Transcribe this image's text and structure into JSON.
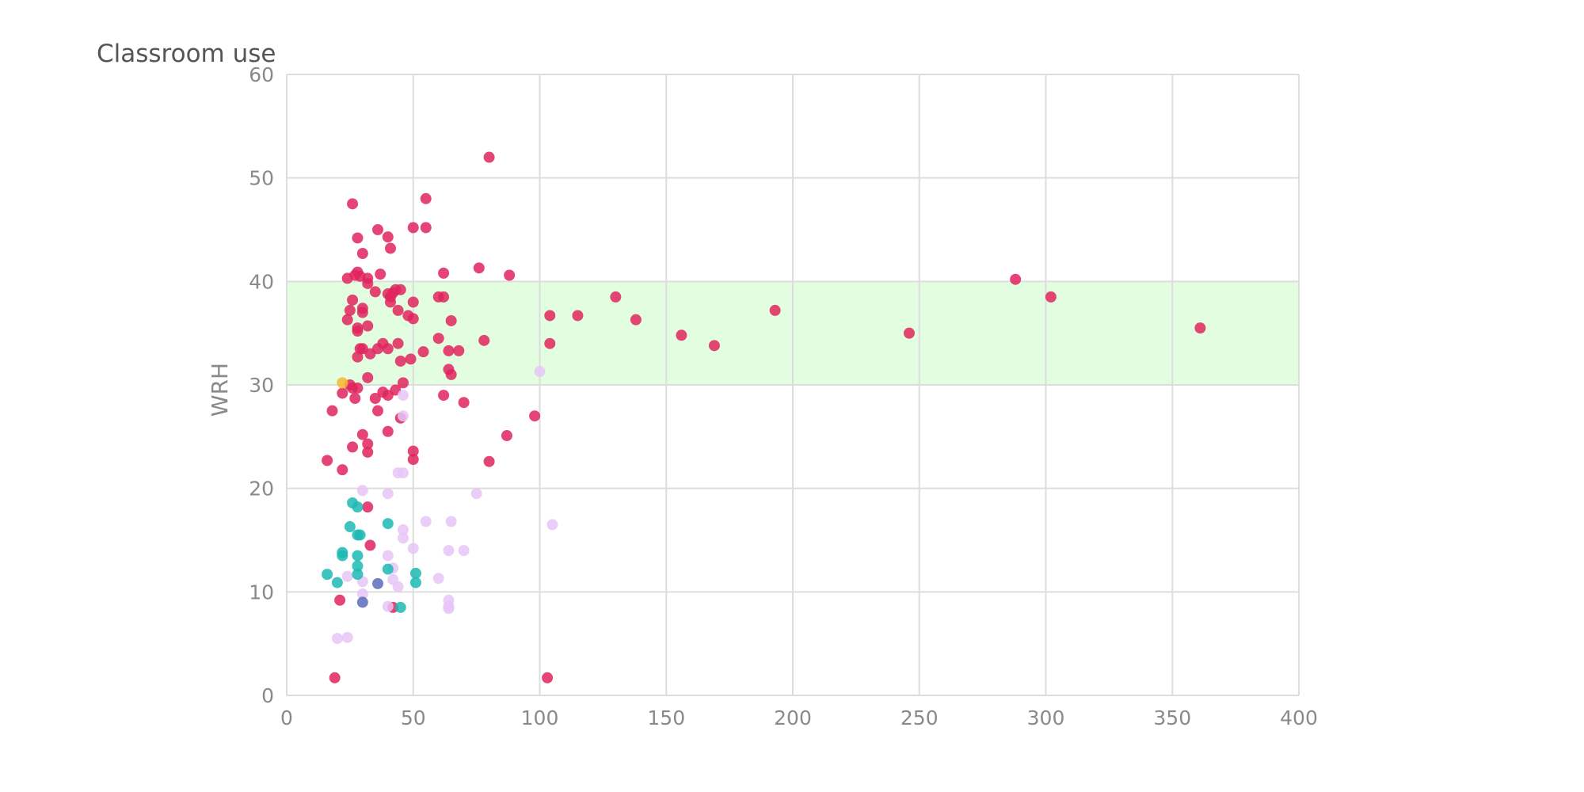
{
  "chart_data": {
    "type": "scatter",
    "title": "Classroom use",
    "xlabel": "",
    "ylabel": "WRH",
    "xlim": [
      0,
      400
    ],
    "ylim": [
      0,
      60
    ],
    "x_ticks": [
      "0",
      "50",
      "100",
      "150",
      "200",
      "250",
      "300",
      "350",
      "400"
    ],
    "y_ticks": [
      "0",
      "10",
      "20",
      "30",
      "40",
      "50",
      "60"
    ],
    "grid": true,
    "band": {
      "y_from": 30,
      "y_to": 40,
      "color": "#e3fde0"
    },
    "series": [
      {
        "color": "#e0245e",
        "points": [
          [
            80,
            52
          ],
          [
            26,
            47.5
          ],
          [
            55,
            48
          ],
          [
            50,
            45.2
          ],
          [
            55,
            45.2
          ],
          [
            36,
            45
          ],
          [
            40,
            44.3
          ],
          [
            28,
            44.2
          ],
          [
            41,
            43.2
          ],
          [
            30,
            42.7
          ],
          [
            76,
            41.3
          ],
          [
            62,
            40.8
          ],
          [
            88,
            40.6
          ],
          [
            24,
            40.3
          ],
          [
            27,
            40.6
          ],
          [
            28,
            40.9
          ],
          [
            29,
            40.5
          ],
          [
            32,
            40.3
          ],
          [
            37,
            40.7
          ],
          [
            32,
            39.8
          ],
          [
            35,
            39
          ],
          [
            43,
            39.2
          ],
          [
            45,
            39.2
          ],
          [
            40,
            38.8
          ],
          [
            41,
            38.5
          ],
          [
            42,
            38.9
          ],
          [
            60,
            38.5
          ],
          [
            62,
            38.5
          ],
          [
            26,
            38.2
          ],
          [
            41,
            38
          ],
          [
            50,
            38
          ],
          [
            30,
            37.4
          ],
          [
            25,
            37.2
          ],
          [
            44,
            37.2
          ],
          [
            30,
            37
          ],
          [
            48,
            36.7
          ],
          [
            50,
            36.4
          ],
          [
            65,
            36.2
          ],
          [
            104,
            36.7
          ],
          [
            115,
            36.7
          ],
          [
            130,
            38.5
          ],
          [
            138,
            36.3
          ],
          [
            288,
            40.2
          ],
          [
            302,
            38.5
          ],
          [
            361,
            35.5
          ],
          [
            156,
            34.8
          ],
          [
            169,
            33.8
          ],
          [
            193,
            37.2
          ],
          [
            246,
            35
          ],
          [
            24,
            36.3
          ],
          [
            28,
            35.2
          ],
          [
            32,
            35.7
          ],
          [
            28,
            35.5
          ],
          [
            60,
            34.5
          ],
          [
            78,
            34.3
          ],
          [
            104,
            34
          ],
          [
            38,
            34
          ],
          [
            44,
            34
          ],
          [
            36,
            33.5
          ],
          [
            40,
            33.5
          ],
          [
            29,
            33.5
          ],
          [
            30,
            33.5
          ],
          [
            33,
            33
          ],
          [
            54,
            33.2
          ],
          [
            64,
            33.3
          ],
          [
            68,
            33.3
          ],
          [
            28,
            32.7
          ],
          [
            45,
            32.3
          ],
          [
            49,
            32.5
          ],
          [
            64,
            31.5
          ],
          [
            65,
            31
          ],
          [
            32,
            30.7
          ],
          [
            46,
            30.2
          ],
          [
            25,
            30
          ],
          [
            26,
            29.7
          ],
          [
            28,
            29.7
          ],
          [
            22,
            29.2
          ],
          [
            38,
            29.3
          ],
          [
            43,
            29.5
          ],
          [
            40,
            29
          ],
          [
            62,
            29
          ],
          [
            27,
            28.7
          ],
          [
            35,
            28.7
          ],
          [
            70,
            28.3
          ],
          [
            18,
            27.5
          ],
          [
            36,
            27.5
          ],
          [
            98,
            27
          ],
          [
            45,
            26.8
          ],
          [
            30,
            25.2
          ],
          [
            40,
            25.5
          ],
          [
            87,
            25.1
          ],
          [
            26,
            24
          ],
          [
            32,
            24.3
          ],
          [
            50,
            23.6
          ],
          [
            32,
            23.5
          ],
          [
            50,
            22.8
          ],
          [
            16,
            22.7
          ],
          [
            80,
            22.6
          ],
          [
            22,
            21.8
          ],
          [
            32,
            18.2
          ],
          [
            33,
            14.5
          ],
          [
            21,
            9.2
          ],
          [
            42,
            8.5
          ],
          [
            103,
            1.7
          ],
          [
            19,
            1.7
          ]
        ]
      },
      {
        "color": "#e6c6f7",
        "points": [
          [
            100,
            31.3
          ],
          [
            46,
            29
          ],
          [
            46,
            27
          ],
          [
            44,
            21.5
          ],
          [
            46,
            21.5
          ],
          [
            30,
            19.8
          ],
          [
            40,
            19.5
          ],
          [
            75,
            19.5
          ],
          [
            55,
            16.8
          ],
          [
            65,
            16.8
          ],
          [
            105,
            16.5
          ],
          [
            46,
            16
          ],
          [
            46,
            15.2
          ],
          [
            50,
            14.2
          ],
          [
            64,
            14
          ],
          [
            70,
            14
          ],
          [
            40,
            13.5
          ],
          [
            42,
            12.3
          ],
          [
            24,
            11.5
          ],
          [
            30,
            11
          ],
          [
            42,
            11.2
          ],
          [
            60,
            11.3
          ],
          [
            44,
            10.5
          ],
          [
            30,
            9.8
          ],
          [
            40,
            8.6
          ],
          [
            64,
            9.2
          ],
          [
            64,
            8.6
          ],
          [
            64,
            8.4
          ],
          [
            20,
            5.5
          ],
          [
            24,
            5.6
          ]
        ]
      },
      {
        "color": "#1cb8b3",
        "points": [
          [
            26,
            18.6
          ],
          [
            28,
            18.2
          ],
          [
            25,
            16.3
          ],
          [
            40,
            16.6
          ],
          [
            28,
            15.5
          ],
          [
            29,
            15.5
          ],
          [
            22,
            13.8
          ],
          [
            22,
            13.5
          ],
          [
            28,
            13.5
          ],
          [
            28,
            12.5
          ],
          [
            40,
            12.2
          ],
          [
            16,
            11.7
          ],
          [
            28,
            11.7
          ],
          [
            51,
            11.8
          ],
          [
            20,
            10.9
          ],
          [
            51,
            10.9
          ],
          [
            45,
            8.5
          ]
        ]
      },
      {
        "color": "#5d6bbb",
        "points": [
          [
            36,
            10.8
          ],
          [
            30,
            9
          ]
        ]
      },
      {
        "color": "#f7b731",
        "points": [
          [
            22,
            30.2
          ]
        ]
      }
    ]
  }
}
